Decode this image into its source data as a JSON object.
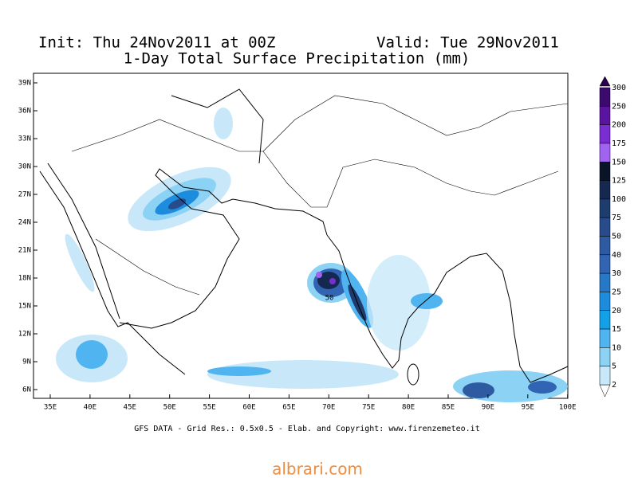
{
  "header": {
    "init": "Init: Thu 24Nov2011 at 00Z",
    "valid": "Valid: Tue 29Nov2011",
    "title": "1-Day Total Surface Precipitation (mm)"
  },
  "map": {
    "lat_labels": [
      "39N",
      "36N",
      "33N",
      "30N",
      "27N",
      "24N",
      "21N",
      "18N",
      "15N",
      "12N",
      "9N",
      "6N"
    ],
    "lon_labels": [
      "35E",
      "40E",
      "45E",
      "50E",
      "55E",
      "60E",
      "65E",
      "70E",
      "75E",
      "80E",
      "85E",
      "90E",
      "95E",
      "100E"
    ],
    "contour_label": "50"
  },
  "colorbar": {
    "levels": [
      300,
      250,
      200,
      175,
      150,
      125,
      100,
      75,
      50,
      40,
      30,
      25,
      20,
      15,
      10,
      5,
      2
    ],
    "colors": [
      "#3c0a6e",
      "#5a14a0",
      "#7a2ed2",
      "#a064f0",
      "#0a1428",
      "#142850",
      "#1e3c6e",
      "#284b8c",
      "#2d5aa0",
      "#3264b4",
      "#2878c8",
      "#1e8cdc",
      "#14a0e6",
      "#50b4f0",
      "#8cd2f5",
      "#c8e8fa"
    ]
  },
  "footer": "GFS DATA - Grid Res.: 0.5x0.5 - Elab. and Copyright: www.firenzemeteo.it",
  "watermark": "albrari.com"
}
